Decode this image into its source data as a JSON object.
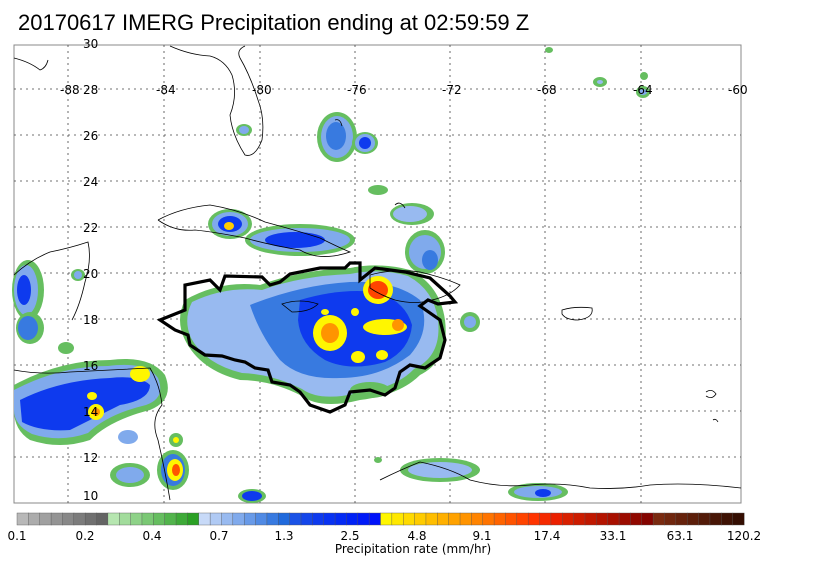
{
  "title": "20170617 IMERG Precipitation ending at 02:59:59 Z",
  "lat_labels": [
    "30",
    "28",
    "26",
    "24",
    "22",
    "20",
    "18",
    "16",
    "14",
    "12",
    "10"
  ],
  "lon_labels": [
    "-88",
    "-84",
    "-80",
    "-76",
    "-72",
    "-68",
    "-64",
    "-60"
  ],
  "colorbar": {
    "title": "Precipitation rate (mm/hr)",
    "tick_labels": [
      "0.1",
      "0.2",
      "0.4",
      "0.7",
      "1.3",
      "2.5",
      "4.8",
      "9.1",
      "17.4",
      "33.1",
      "63.1",
      "120.2"
    ],
    "colors": [
      "#b8b8b8",
      "#acacac",
      "#a0a0a0",
      "#949494",
      "#888888",
      "#7c7c7c",
      "#707070",
      "#646464",
      "#b6e6b0",
      "#a2dc9c",
      "#8ed288",
      "#7ac874",
      "#66be60",
      "#52b44c",
      "#3eaa38",
      "#2aa024",
      "#c8daf8",
      "#b0caf4",
      "#98baf0",
      "#80aaec",
      "#689ae8",
      "#508ae4",
      "#387ae0",
      "#206adc",
      "#1a52e6",
      "#1446ea",
      "#0e3aee",
      "#0832f2",
      "#042af4",
      "#0022f6",
      "#001af8",
      "#0012fa",
      "#fff600",
      "#ffe800",
      "#ffda00",
      "#ffcc00",
      "#ffbe00",
      "#ffb000",
      "#ffa200",
      "#ff9400",
      "#ff8400",
      "#ff7400",
      "#ff6400",
      "#ff5400",
      "#ff4400",
      "#ff3400",
      "#f52a00",
      "#eb2000",
      "#d82000",
      "#cc1c00",
      "#c01800",
      "#b41400",
      "#a81000",
      "#9c0c00",
      "#900800",
      "#840400",
      "#7a2a10",
      "#70260e",
      "#66220c",
      "#5c1e0a",
      "#521a08",
      "#481606",
      "#3e1204",
      "#340e02"
    ]
  }
}
